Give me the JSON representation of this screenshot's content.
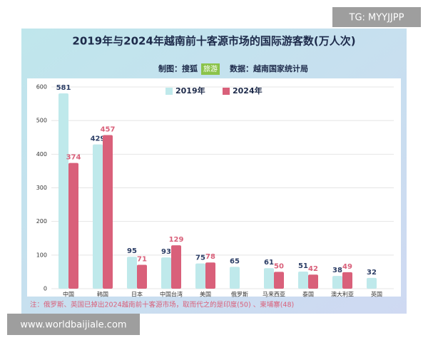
{
  "chart_data": {
    "type": "bar",
    "title": "2019年与2024年越南前十客源市场的国际游客数(万人次)",
    "subtitle": [
      "制图：搜狐",
      "旅游",
      "数据：越南国家统计局"
    ],
    "categories": [
      "中国",
      "韩国",
      "日本",
      "中国台湾",
      "美国",
      "俄罗斯",
      "马来西亚",
      "泰国",
      "澳大利亚",
      "英国"
    ],
    "series": [
      {
        "name": "2019年",
        "color": "#bfe9eb",
        "label_color": "#2c3e66",
        "values": [
          581,
          429,
          95,
          93,
          75,
          65,
          61,
          51,
          38,
          32
        ]
      },
      {
        "name": "2024年",
        "color": "#d9607a",
        "label_color": "#d9607a",
        "values": [
          374,
          457,
          71,
          129,
          78,
          null,
          50,
          42,
          49,
          null
        ]
      }
    ],
    "ylim": [
      0,
      600
    ],
    "yticks": [
      0,
      100,
      200,
      300,
      400,
      500,
      600
    ],
    "grid": true,
    "legend": "top",
    "note": "注：俄罗斯、英国已掉出2024越南前十客源市场，取而代之的是印度(50) 、柬埔寨(48)"
  },
  "watermark": {
    "top": "TG: MYYJJPP",
    "bottom": "www.worldbaijiale.com"
  }
}
